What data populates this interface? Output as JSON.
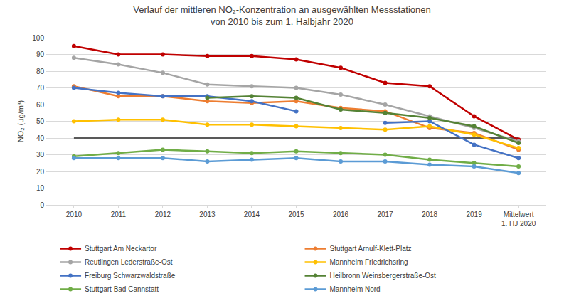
{
  "chart_data": {
    "type": "line",
    "title": "Verlauf der mittleren NO₂-Konzentration an ausgewählten Messstationen\nvon 2010 bis zum 1. Halbjahr 2020",
    "y_label": "NO₂ (µg/m³)",
    "categories": [
      "2010",
      "2011",
      "2012",
      "2013",
      "2014",
      "2015",
      "2016",
      "2017",
      "2018",
      "2019",
      "Mittelwert\n1. HJ 2020"
    ],
    "series": [
      {
        "color": "#595959",
        "marker": "none",
        "values": [
          40,
          40,
          40,
          40,
          40,
          40,
          40,
          40,
          40,
          40,
          40
        ]
      },
      {
        "name": "Stuttgart Am Neckartor",
        "color": "#c00000",
        "marker": "circle",
        "values": [
          95,
          90,
          90,
          89,
          89,
          87,
          82,
          73,
          71,
          53,
          39
        ]
      },
      {
        "name": "Stuttgart Arnulf-Klett-Platz",
        "color": "#ed7d31",
        "marker": "circle",
        "values": [
          71,
          65,
          65,
          62,
          61,
          62,
          58,
          56,
          46,
          43,
          33
        ]
      },
      {
        "name": "Reutlingen Lederstraße-Ost",
        "color": "#a5a5a5",
        "marker": "circle",
        "values": [
          88,
          84,
          79,
          72,
          71,
          70,
          66,
          60,
          53,
          46,
          38
        ]
      },
      {
        "name": "Mannheim Friedrichsring",
        "color": "#ffc000",
        "marker": "circle",
        "values": [
          50,
          51,
          51,
          48,
          48,
          47,
          46,
          45,
          47,
          42,
          34
        ]
      },
      {
        "name": "Freiburg Schwarzwaldstraße",
        "color": "#4472c4",
        "marker": "circle",
        "values": [
          70,
          67,
          65,
          65,
          62,
          56,
          null,
          49,
          50,
          36,
          28
        ]
      },
      {
        "name": "Heilbronn Weinsbergerstraße-Ost",
        "color": "#548235",
        "marker": "circle",
        "values": [
          null,
          null,
          null,
          64,
          65,
          64,
          57,
          55,
          52,
          47,
          37
        ]
      },
      {
        "name": "Stuttgart Bad Cannstatt",
        "color": "#70ad47",
        "marker": "circle",
        "values": [
          29,
          31,
          33,
          32,
          31,
          32,
          31,
          30,
          27,
          25,
          23
        ]
      },
      {
        "name": "Mannheim Nord",
        "color": "#5b9bd5",
        "marker": "circle",
        "values": [
          28,
          28,
          28,
          26,
          27,
          28,
          26,
          26,
          24,
          23,
          19
        ]
      }
    ],
    "ylim": [
      0,
      100
    ],
    "yticks": [
      0,
      10,
      20,
      30,
      40,
      50,
      60,
      70,
      80,
      90,
      100
    ],
    "grid": true,
    "legend": "bottom"
  }
}
